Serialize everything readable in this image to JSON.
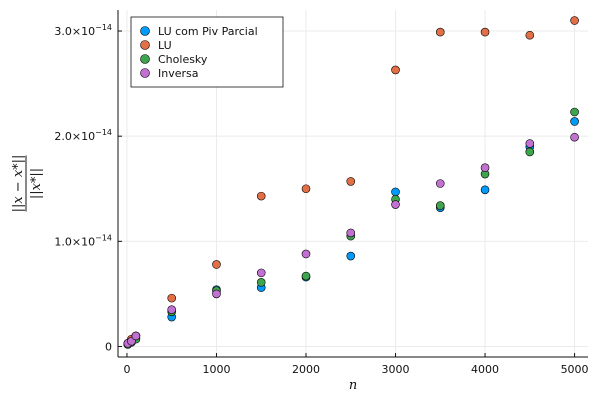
{
  "chart_data": {
    "type": "scatter",
    "xlabel": "n",
    "ylabel": "||x − x*|| / ||x*||",
    "xlim": [
      -100,
      5150
    ],
    "ylim": [
      -1e-15,
      3.2e-14
    ],
    "x_ticks": [
      {
        "value": 0,
        "label": "0"
      },
      {
        "value": 1000,
        "label": "1000"
      },
      {
        "value": 2000,
        "label": "2000"
      },
      {
        "value": 3000,
        "label": "3000"
      },
      {
        "value": 4000,
        "label": "4000"
      },
      {
        "value": 5000,
        "label": "5000"
      }
    ],
    "y_ticks": [
      {
        "value": 0,
        "label": "0",
        "mantissa": "0",
        "exponent": ""
      },
      {
        "value": 1e-14,
        "label": "1.0×10^-14",
        "mantissa": "1.0×10",
        "exponent": "−14"
      },
      {
        "value": 2e-14,
        "label": "2.0×10^-14",
        "mantissa": "2.0×10",
        "exponent": "−14"
      },
      {
        "value": 3e-14,
        "label": "3.0×10^-14",
        "mantissa": "3.0×10",
        "exponent": "−14"
      }
    ],
    "grid": true,
    "legend_position": "top-left",
    "series": [
      {
        "name": "LU com Piv Parcial",
        "color": "#009AFA",
        "points": [
          [
            10,
            2e-16
          ],
          [
            50,
            5e-16
          ],
          [
            100,
            8e-16
          ],
          [
            500,
            2.8e-15
          ],
          [
            1000,
            5.4e-15
          ],
          [
            1500,
            5.6e-15
          ],
          [
            2000,
            6.6e-15
          ],
          [
            2500,
            8.6e-15
          ],
          [
            3000,
            1.47e-14
          ],
          [
            3500,
            1.32e-14
          ],
          [
            4000,
            1.49e-14
          ],
          [
            4500,
            1.9e-14
          ],
          [
            5000,
            2.14e-14
          ]
        ]
      },
      {
        "name": "LU",
        "color": "#E36F47",
        "points": [
          [
            10,
            3e-16
          ],
          [
            50,
            7e-16
          ],
          [
            100,
            1e-15
          ],
          [
            500,
            4.6e-15
          ],
          [
            1000,
            7.8e-15
          ],
          [
            1500,
            1.43e-14
          ],
          [
            2000,
            1.5e-14
          ],
          [
            2500,
            1.57e-14
          ],
          [
            3000,
            2.63e-14
          ],
          [
            3500,
            2.99e-14
          ],
          [
            4000,
            2.99e-14
          ],
          [
            4500,
            2.96e-14
          ],
          [
            5000,
            3.1e-14
          ]
        ]
      },
      {
        "name": "Cholesky",
        "color": "#3EA44E",
        "points": [
          [
            10,
            2e-16
          ],
          [
            50,
            4e-16
          ],
          [
            100,
            7e-16
          ],
          [
            500,
            3.3e-15
          ],
          [
            1000,
            5.3e-15
          ],
          [
            1500,
            6.1e-15
          ],
          [
            2000,
            6.7e-15
          ],
          [
            2500,
            1.05e-14
          ],
          [
            3000,
            1.4e-14
          ],
          [
            3500,
            1.34e-14
          ],
          [
            4000,
            1.64e-14
          ],
          [
            4500,
            1.85e-14
          ],
          [
            5000,
            2.23e-14
          ]
        ]
      },
      {
        "name": "Inversa",
        "color": "#C271D2",
        "points": [
          [
            10,
            3e-16
          ],
          [
            50,
            5e-16
          ],
          [
            100,
            1e-15
          ],
          [
            500,
            3.5e-15
          ],
          [
            1000,
            5e-15
          ],
          [
            1500,
            7e-15
          ],
          [
            2000,
            8.8e-15
          ],
          [
            2500,
            1.08e-14
          ],
          [
            3000,
            1.35e-14
          ],
          [
            3500,
            1.55e-14
          ],
          [
            4000,
            1.7e-14
          ],
          [
            4500,
            1.93e-14
          ],
          [
            5000,
            1.99e-14
          ]
        ]
      }
    ]
  }
}
